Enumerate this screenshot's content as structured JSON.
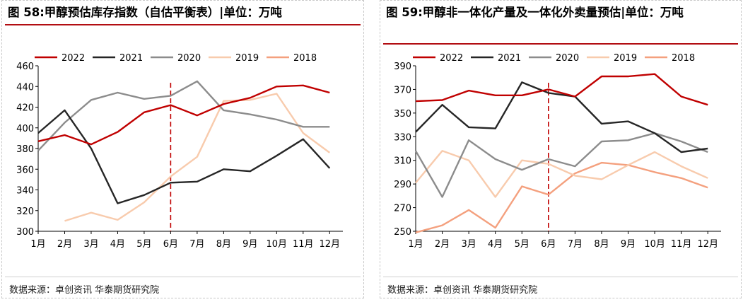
{
  "chart_data": [
    {
      "type": "line",
      "title": "图 58:甲醇预估库存指数（自估平衡表）|单位：万吨",
      "source": "数据来源：卓创资讯  华泰期货研究院",
      "categories": [
        "1月",
        "2月",
        "3月",
        "4月",
        "5月",
        "6月",
        "7月",
        "8月",
        "9月",
        "10月",
        "11月",
        "12月"
      ],
      "ylim": [
        300,
        460
      ],
      "yticks": [
        "300",
        "320",
        "340",
        "360",
        "380",
        "400",
        "420",
        "440",
        "460"
      ],
      "divider_after_index": 5,
      "legend_position": "top",
      "series": [
        {
          "name": "2022",
          "color": "#c00000",
          "values": [
            387,
            393,
            384,
            396,
            415,
            422,
            412,
            423,
            429,
            440,
            441,
            434
          ]
        },
        {
          "name": "2021",
          "color": "#262626",
          "values": [
            395,
            417,
            380,
            327,
            335,
            347,
            348,
            360,
            358,
            373,
            389,
            361
          ]
        },
        {
          "name": "2020",
          "color": "#8c8c8c",
          "values": [
            378,
            405,
            427,
            434,
            428,
            431,
            445,
            417,
            413,
            408,
            401,
            401
          ]
        },
        {
          "name": "2019",
          "color": "#f8cbad",
          "values": [
            null,
            310,
            318,
            311,
            328,
            353,
            372,
            426,
            427,
            433,
            395,
            376
          ]
        },
        {
          "name": "2018",
          "color": "#f4a07e",
          "values": [
            null,
            null,
            null,
            null,
            null,
            null,
            null,
            null,
            null,
            null,
            null,
            null
          ]
        }
      ]
    },
    {
      "type": "line",
      "title": "图 59:甲醇非一体化产量及一体化外卖量预估|单位：万吨",
      "source": "数据来源：卓创资讯  华泰期货研究院",
      "categories": [
        "1月",
        "2月",
        "3月",
        "4月",
        "5月",
        "6月",
        "7月",
        "8月",
        "9月",
        "10月",
        "11月",
        "12月"
      ],
      "ylim": [
        250,
        390
      ],
      "yticks": [
        "250",
        "270",
        "290",
        "310",
        "330",
        "350",
        "370",
        "390"
      ],
      "divider_after_index": 5,
      "legend_position": "top",
      "series": [
        {
          "name": "2022",
          "color": "#c00000",
          "values": [
            360,
            361,
            369,
            365,
            365,
            370,
            364,
            381,
            381,
            383,
            364,
            357
          ]
        },
        {
          "name": "2021",
          "color": "#262626",
          "values": [
            334,
            357,
            338,
            337,
            376,
            367,
            364,
            341,
            343,
            333,
            317,
            320
          ]
        },
        {
          "name": "2020",
          "color": "#8c8c8c",
          "values": [
            318,
            279,
            327,
            311,
            302,
            311,
            305,
            326,
            327,
            333,
            326,
            317
          ]
        },
        {
          "name": "2019",
          "color": "#f8cbad",
          "values": [
            291,
            318,
            310,
            279,
            310,
            307,
            297,
            294,
            306,
            317,
            305,
            295
          ]
        },
        {
          "name": "2018",
          "color": "#f4a07e",
          "values": [
            249,
            255,
            268,
            253,
            288,
            281,
            299,
            308,
            306,
            300,
            295,
            287
          ]
        }
      ]
    }
  ]
}
